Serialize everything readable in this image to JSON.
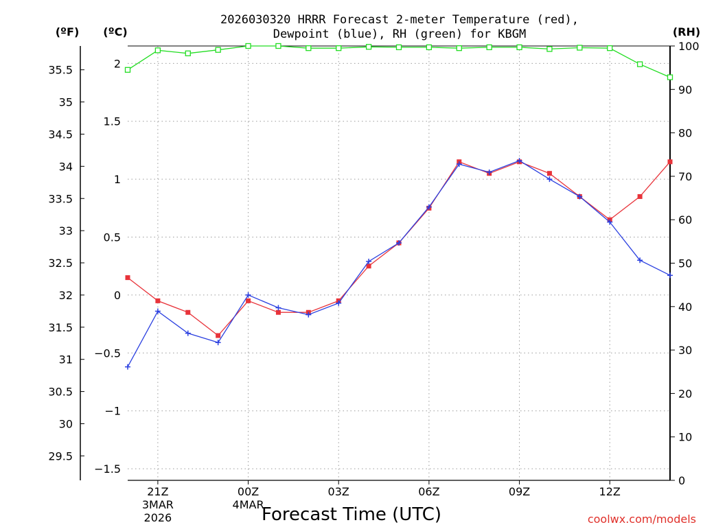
{
  "chart_data": {
    "type": "line",
    "title_line1": "2026030320 HRRR Forecast 2-meter Temperature (red),",
    "title_line2": "Dewpoint (blue), RH (green) for KBGM",
    "xlabel": "Forecast Time (UTC)",
    "credit": "coolwx.com/models",
    "unit_f": "(ºF)",
    "unit_c": "(ºC)",
    "unit_rh": "(RH)",
    "f_ticks": [
      "35.5",
      "35",
      "34.5",
      "34",
      "33.5",
      "33",
      "32.5",
      "32",
      "31.5",
      "31",
      "30.5",
      "30",
      "29.5"
    ],
    "f_tick_values": [
      35.5,
      35,
      34.5,
      34,
      33.5,
      33,
      32.5,
      32,
      31.5,
      31,
      30.5,
      30,
      29.5
    ],
    "c_ticks": [
      "2",
      "1.5",
      "1",
      "0.5",
      "0",
      "−0.5",
      "−1",
      "−1.5"
    ],
    "c_tick_values": [
      2,
      1.5,
      1,
      0.5,
      0,
      -0.5,
      -1,
      -1.5
    ],
    "rh_ticks": [
      "100",
      "90",
      "80",
      "70",
      "60",
      "50",
      "40",
      "30",
      "20",
      "10",
      "0"
    ],
    "rh_tick_values": [
      100,
      90,
      80,
      70,
      60,
      50,
      40,
      30,
      20,
      10,
      0
    ],
    "x_ticks": [
      {
        "hour": 1,
        "label": "21Z",
        "date": "3MAR",
        "year": "2026"
      },
      {
        "hour": 4,
        "label": "00Z",
        "date": "4MAR",
        "year": ""
      },
      {
        "hour": 7,
        "label": "03Z",
        "date": "",
        "year": ""
      },
      {
        "hour": 10,
        "label": "06Z",
        "date": "",
        "year": ""
      },
      {
        "hour": 13,
        "label": "09Z",
        "date": "",
        "year": ""
      },
      {
        "hour": 16,
        "label": "12Z",
        "date": "",
        "year": ""
      }
    ],
    "xlim": [
      0,
      18
    ],
    "c_lim": [
      -1.6,
      2.15
    ],
    "rh_lim": [
      0,
      100
    ],
    "x": [
      0,
      1,
      2,
      3,
      4,
      5,
      6,
      7,
      8,
      9,
      10,
      11,
      12,
      13,
      14,
      15,
      16,
      17,
      18
    ],
    "series": [
      {
        "name": "Temperature",
        "color": "#e8333a",
        "axis": "c",
        "marker": "filled-square",
        "values": [
          0.15,
          -0.05,
          -0.15,
          -0.35,
          -0.05,
          -0.15,
          -0.15,
          -0.05,
          0.25,
          0.45,
          0.75,
          1.15,
          1.05,
          1.15,
          1.05,
          0.85,
          0.65,
          0.85,
          1.15
        ]
      },
      {
        "name": "Dewpoint",
        "color": "#2a3fe0",
        "axis": "c",
        "marker": "plus",
        "values": [
          -0.62,
          -0.14,
          -0.33,
          -0.41,
          0.0,
          -0.11,
          -0.17,
          -0.07,
          0.29,
          0.45,
          0.76,
          1.13,
          1.06,
          1.16,
          1.0,
          0.85,
          0.63,
          0.3,
          0.17
        ]
      },
      {
        "name": "RH",
        "color": "#22dd22",
        "axis": "rh",
        "marker": "open-square",
        "values": [
          94.5,
          99,
          98.3,
          99.1,
          100,
          100,
          99.5,
          99.5,
          99.8,
          99.7,
          99.7,
          99.5,
          99.7,
          99.7,
          99.3,
          99.6,
          99.5,
          95.8,
          92.8
        ]
      }
    ]
  }
}
